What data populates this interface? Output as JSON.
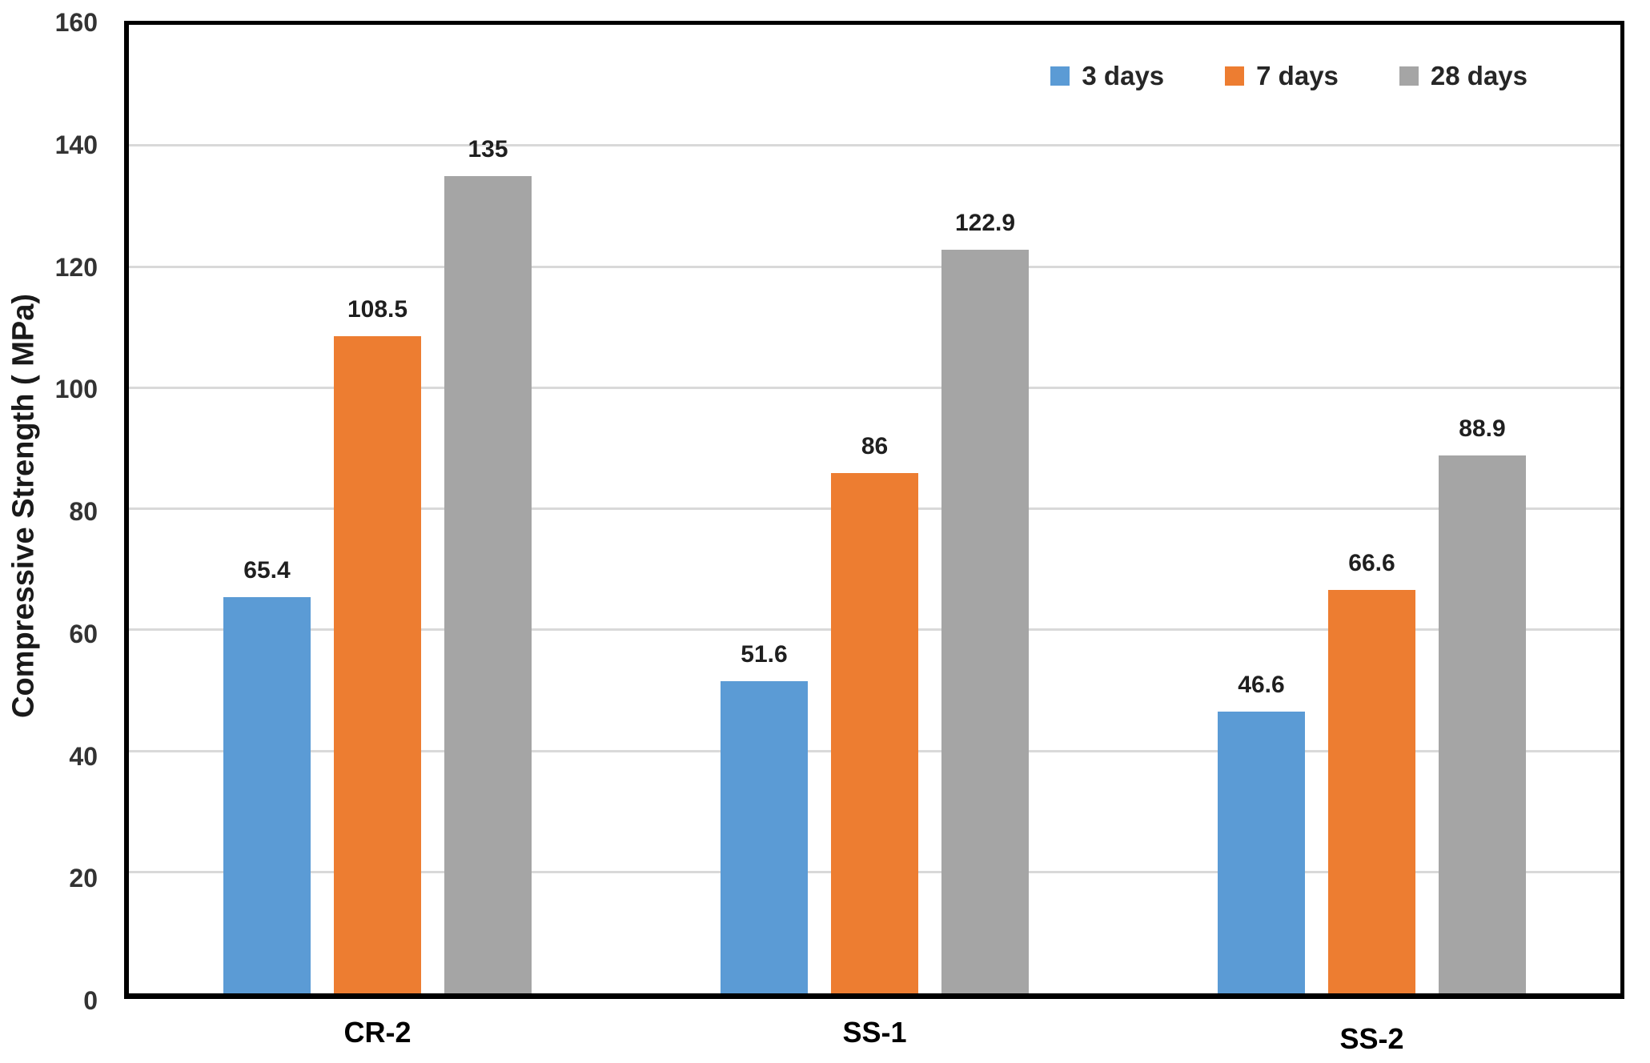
{
  "chart_data": {
    "type": "bar",
    "title": "",
    "xlabel": "",
    "ylabel": "Compressive Strength ( MPa)",
    "ylim": [
      0,
      160
    ],
    "yticks": [
      0,
      20,
      40,
      60,
      80,
      100,
      120,
      140,
      160
    ],
    "grid": true,
    "legend_position": "top-right-inside",
    "categories": [
      "CR-2",
      "SS-1",
      "SS-2"
    ],
    "series": [
      {
        "name": "3 days",
        "color": "#5B9BD5",
        "values": [
          65.4,
          51.6,
          46.6
        ],
        "labels": [
          "65.4",
          "51.6",
          "46.6"
        ]
      },
      {
        "name": "7 days",
        "color": "#ED7D31",
        "values": [
          108.5,
          86,
          66.6
        ],
        "labels": [
          "108.5",
          "86",
          "66.6"
        ]
      },
      {
        "name": "28 days",
        "color": "#A5A5A5",
        "values": [
          135,
          122.9,
          88.9
        ],
        "labels": [
          "135",
          "122.9",
          "88.9"
        ]
      }
    ],
    "colors": {
      "axis": "#000000",
      "gridline": "#D9D9D9",
      "tick_label": "#333333",
      "data_label": "#1f1f1f",
      "category_label": "#000000",
      "background": "#ffffff"
    }
  }
}
